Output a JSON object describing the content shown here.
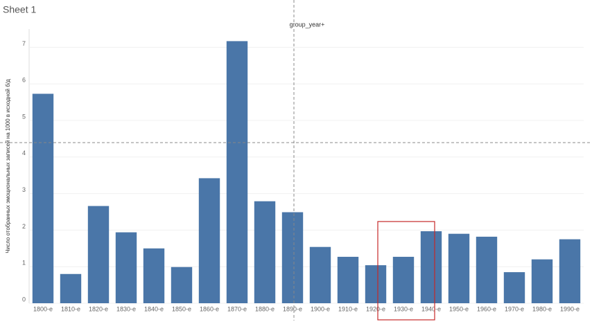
{
  "chart_data": {
    "type": "bar",
    "title": "Sheet 1",
    "x_label": "group_year+",
    "y_label": "Число отобранных эмоциональных записей на 1000 в исходной б/д",
    "categories": [
      "1800-е",
      "1810-е",
      "1820-е",
      "1830-е",
      "1840-е",
      "1850-е",
      "1860-е",
      "1870-е",
      "1880-е",
      "1890-е",
      "1900-е",
      "1910-е",
      "1920-е",
      "1930-е",
      "1940-е",
      "1950-е",
      "1960-е",
      "1970-е",
      "1980-е",
      "1990-е"
    ],
    "values": [
      5.73,
      0.8,
      2.66,
      1.94,
      1.5,
      0.99,
      3.42,
      7.17,
      2.79,
      2.49,
      1.54,
      1.27,
      1.04,
      1.27,
      1.97,
      1.9,
      1.82,
      0.85,
      1.2,
      1.75
    ],
    "color": "#4a76a8",
    "ylim": [
      0,
      7.5
    ],
    "yticks": [
      0,
      1,
      2,
      3,
      4,
      5,
      6,
      7
    ],
    "grid": true
  }
}
